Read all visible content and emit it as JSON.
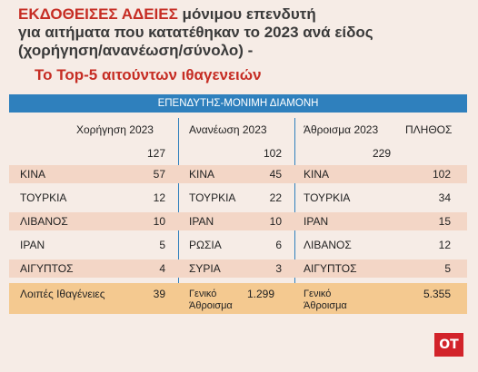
{
  "title": {
    "highlight": "ΕΚΔΟΘΕΙΣΕΣ ΑΔΕΙΕΣ",
    "line1_rest": " μόνιμου επενδυτή",
    "line2": "για αιτήματα που κατατέθηκαν το 2023 ανά είδος",
    "line3": "(χορήγηση/ανανέωση/σύνολο) -"
  },
  "subtitle": "Το Top-5 αιτούντων ιθαγενειών",
  "table_header": "ΕΠΕΝΔΥΤΗΣ-ΜΟΝΙΜΗ ΔΙΑΜΟΝΗ",
  "columns": {
    "grant": "Χορήγηση 2023",
    "renewal": "Ανανέωση 2023",
    "sum": "Άθροισμα 2023",
    "count": "ΠΛΗΘΟΣ"
  },
  "totals_top": {
    "grant": "127",
    "renewal": "102",
    "sum": "229"
  },
  "rows": [
    {
      "g_country": "ΚΙΝΑ",
      "g_value": "57",
      "r_country": "ΚΙΝΑ",
      "r_value": "45",
      "s_country": "ΚΙΝΑ",
      "s_value": "102"
    },
    {
      "g_country": "ΤΟΥΡΚΙΑ",
      "g_value": "12",
      "r_country": "ΤΟΥΡΚΙΑ",
      "r_value": "22",
      "s_country": "ΤΟΥΡΚΙΑ",
      "s_value": "34"
    },
    {
      "g_country": "ΛΙΒΑΝΟΣ",
      "g_value": "10",
      "r_country": "ΙΡΑΝ",
      "r_value": "10",
      "s_country": "ΙΡΑΝ",
      "s_value": "15"
    },
    {
      "g_country": "ΙΡΑΝ",
      "g_value": "5",
      "r_country": "ΡΩΣΙΑ",
      "r_value": "6",
      "s_country": "ΛΙΒΑΝΟΣ",
      "s_value": "12"
    },
    {
      "g_country": "ΑΙΓΥΠΤΟΣ",
      "g_value": "4",
      "r_country": "ΣΥΡΙΑ",
      "r_value": "3",
      "s_country": "ΑΙΓΥΠΤΟΣ",
      "s_value": "5"
    }
  ],
  "footer": {
    "g_label": "Λοιπές Ιθαγένειες",
    "g_value": "39",
    "r_label1": "Γενικό",
    "r_label2": "Άθροισμα",
    "r_value": "1.299",
    "s_label1": "Γενικό",
    "s_label2": "Άθροισμα",
    "s_value": "5.355"
  },
  "logo": "ΟΤ",
  "colors": {
    "accent_red": "#c62d24",
    "header_blue": "#2f80bd",
    "band": "#f3d6c6",
    "total_band": "#f4c990"
  }
}
